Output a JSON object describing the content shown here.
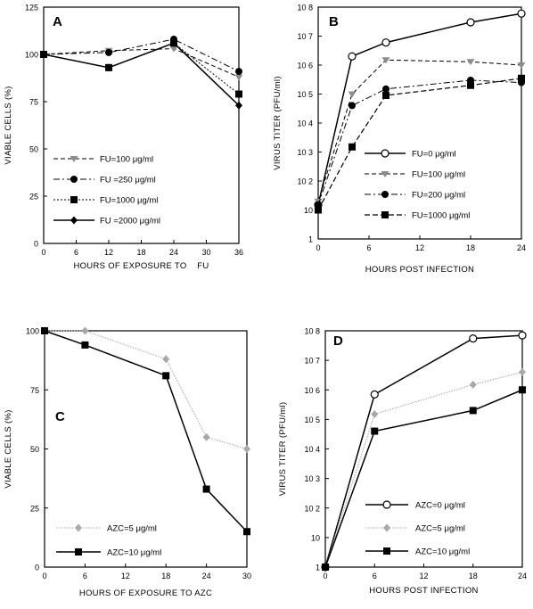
{
  "chart_data": [
    {
      "panel": "A",
      "type": "line",
      "xlabel": "HOURS OF EXPOSURE TO    FU",
      "ylabel": "VIABLE CELLS (%)",
      "xlim": [
        0,
        36
      ],
      "ylim": [
        0,
        125
      ],
      "xticks": [
        0,
        6,
        12,
        18,
        24,
        30,
        36
      ],
      "yticks": [
        0,
        25,
        50,
        75,
        100,
        125
      ],
      "scale": "linear",
      "legend_position": "bottom-left",
      "series": [
        {
          "name": "FU=100 μg/ml",
          "marker": "triangle-down",
          "style": "dashed-gray",
          "x": [
            0,
            12,
            24,
            36
          ],
          "y": [
            100,
            102,
            103,
            88
          ]
        },
        {
          "name": "FU =250 μg/ml",
          "marker": "circle-filled",
          "style": "dashdot",
          "x": [
            0,
            12,
            24,
            36
          ],
          "y": [
            100,
            101,
            108,
            91
          ]
        },
        {
          "name": "FU=1000 μg/ml",
          "marker": "square",
          "style": "dotted",
          "x": [
            0,
            12,
            24,
            36
          ],
          "y": [
            100,
            93,
            106,
            79
          ]
        },
        {
          "name": "FU =2000 μg/ml",
          "marker": "diamond",
          "style": "solid",
          "x": [
            0,
            12,
            24,
            36
          ],
          "y": [
            100,
            93,
            106,
            73
          ]
        }
      ]
    },
    {
      "panel": "B",
      "type": "line",
      "xlabel": "HOURS POST INFECTION",
      "ylabel": "VIRUS TITER (PFU/ml)",
      "xlim": [
        0,
        24
      ],
      "ylim": [
        1,
        100000000
      ],
      "xticks": [
        0,
        6,
        12,
        18,
        24
      ],
      "yticks": [
        1,
        10,
        100,
        1000,
        10000,
        100000,
        1000000,
        10000000,
        100000000
      ],
      "ytick_labels": [
        "1",
        "10",
        "10 2",
        "10 3",
        "10 4",
        "10 5",
        "10 6",
        "10 7",
        "10 8"
      ],
      "scale": "log",
      "legend_position": "bottom-right",
      "series": [
        {
          "name": "FU=0 μg/ml",
          "marker": "circle-open",
          "style": "solid",
          "x": [
            0,
            4,
            8,
            18,
            24
          ],
          "y": [
            15,
            2000000,
            6000000,
            30000000,
            60000000
          ]
        },
        {
          "name": "FU=100 μg/ml",
          "marker": "triangle-down",
          "style": "dashed-gray",
          "x": [
            0,
            4,
            8,
            18,
            24
          ],
          "y": [
            20,
            100000,
            1500000,
            1300000,
            1000000
          ]
        },
        {
          "name": "FU=200 μg/ml",
          "marker": "circle-filled",
          "style": "dashdot",
          "x": [
            0,
            4,
            8,
            18,
            24
          ],
          "y": [
            15,
            40000,
            150000,
            300000,
            250000
          ]
        },
        {
          "name": "FU=1000 μg/ml",
          "marker": "square",
          "style": "dashed",
          "x": [
            0,
            4,
            8,
            18,
            24
          ],
          "y": [
            10,
            1500,
            90000,
            200000,
            350000
          ]
        }
      ]
    },
    {
      "panel": "C",
      "type": "line",
      "xlabel": "HOURS OF EXPOSURE TO AZC",
      "ylabel": "VIABLE CELLS (%)",
      "xlim": [
        0,
        30
      ],
      "ylim": [
        0,
        100
      ],
      "xticks": [
        0,
        6,
        12,
        18,
        24,
        30
      ],
      "yticks": [
        0,
        25,
        50,
        75,
        100
      ],
      "scale": "linear",
      "legend_position": "bottom-left",
      "series": [
        {
          "name": "AZC=5 μg/ml",
          "marker": "diamond-gray",
          "style": "dotted-gray",
          "x": [
            0,
            6,
            18,
            24,
            30
          ],
          "y": [
            100,
            100,
            88,
            55,
            50
          ]
        },
        {
          "name": "AZC=10 μg/ml",
          "marker": "square",
          "style": "solid",
          "x": [
            0,
            6,
            18,
            24,
            30
          ],
          "y": [
            100,
            94,
            81,
            33,
            15
          ]
        }
      ]
    },
    {
      "panel": "D",
      "type": "line",
      "xlabel": "HOURS POST INFECTION",
      "ylabel": "VIRUS TITER (PFU/ml)",
      "xlim": [
        0,
        24
      ],
      "ylim": [
        1,
        100000000
      ],
      "xticks": [
        0,
        6,
        12,
        18,
        24
      ],
      "yticks": [
        1,
        10,
        100,
        1000,
        10000,
        100000,
        1000000,
        10000000,
        100000000
      ],
      "ytick_labels": [
        "1",
        "10",
        "10 2",
        "10 3",
        "10 4",
        "10 5",
        "10 6",
        "10 7",
        "10 8"
      ],
      "scale": "log",
      "legend_position": "bottom-right",
      "series": [
        {
          "name": "AZC=0 μg/ml",
          "marker": "circle-open",
          "style": "solid",
          "x": [
            0,
            6,
            18,
            24
          ],
          "y": [
            1,
            700000,
            55000000,
            70000000
          ]
        },
        {
          "name": "AZC=5 μg/ml",
          "marker": "diamond-gray",
          "style": "dotted-gray",
          "x": [
            0,
            6,
            18,
            24
          ],
          "y": [
            1,
            150000,
            1500000,
            4000000
          ]
        },
        {
          "name": "AZC=10 μg/ml",
          "marker": "square",
          "style": "solid",
          "x": [
            0,
            6,
            18,
            24
          ],
          "y": [
            1,
            40000,
            200000,
            1000000
          ]
        }
      ]
    }
  ],
  "colors": {
    "black": "#000000",
    "gray": "#8c8c8c",
    "light_gray": "#a8a8a8"
  }
}
